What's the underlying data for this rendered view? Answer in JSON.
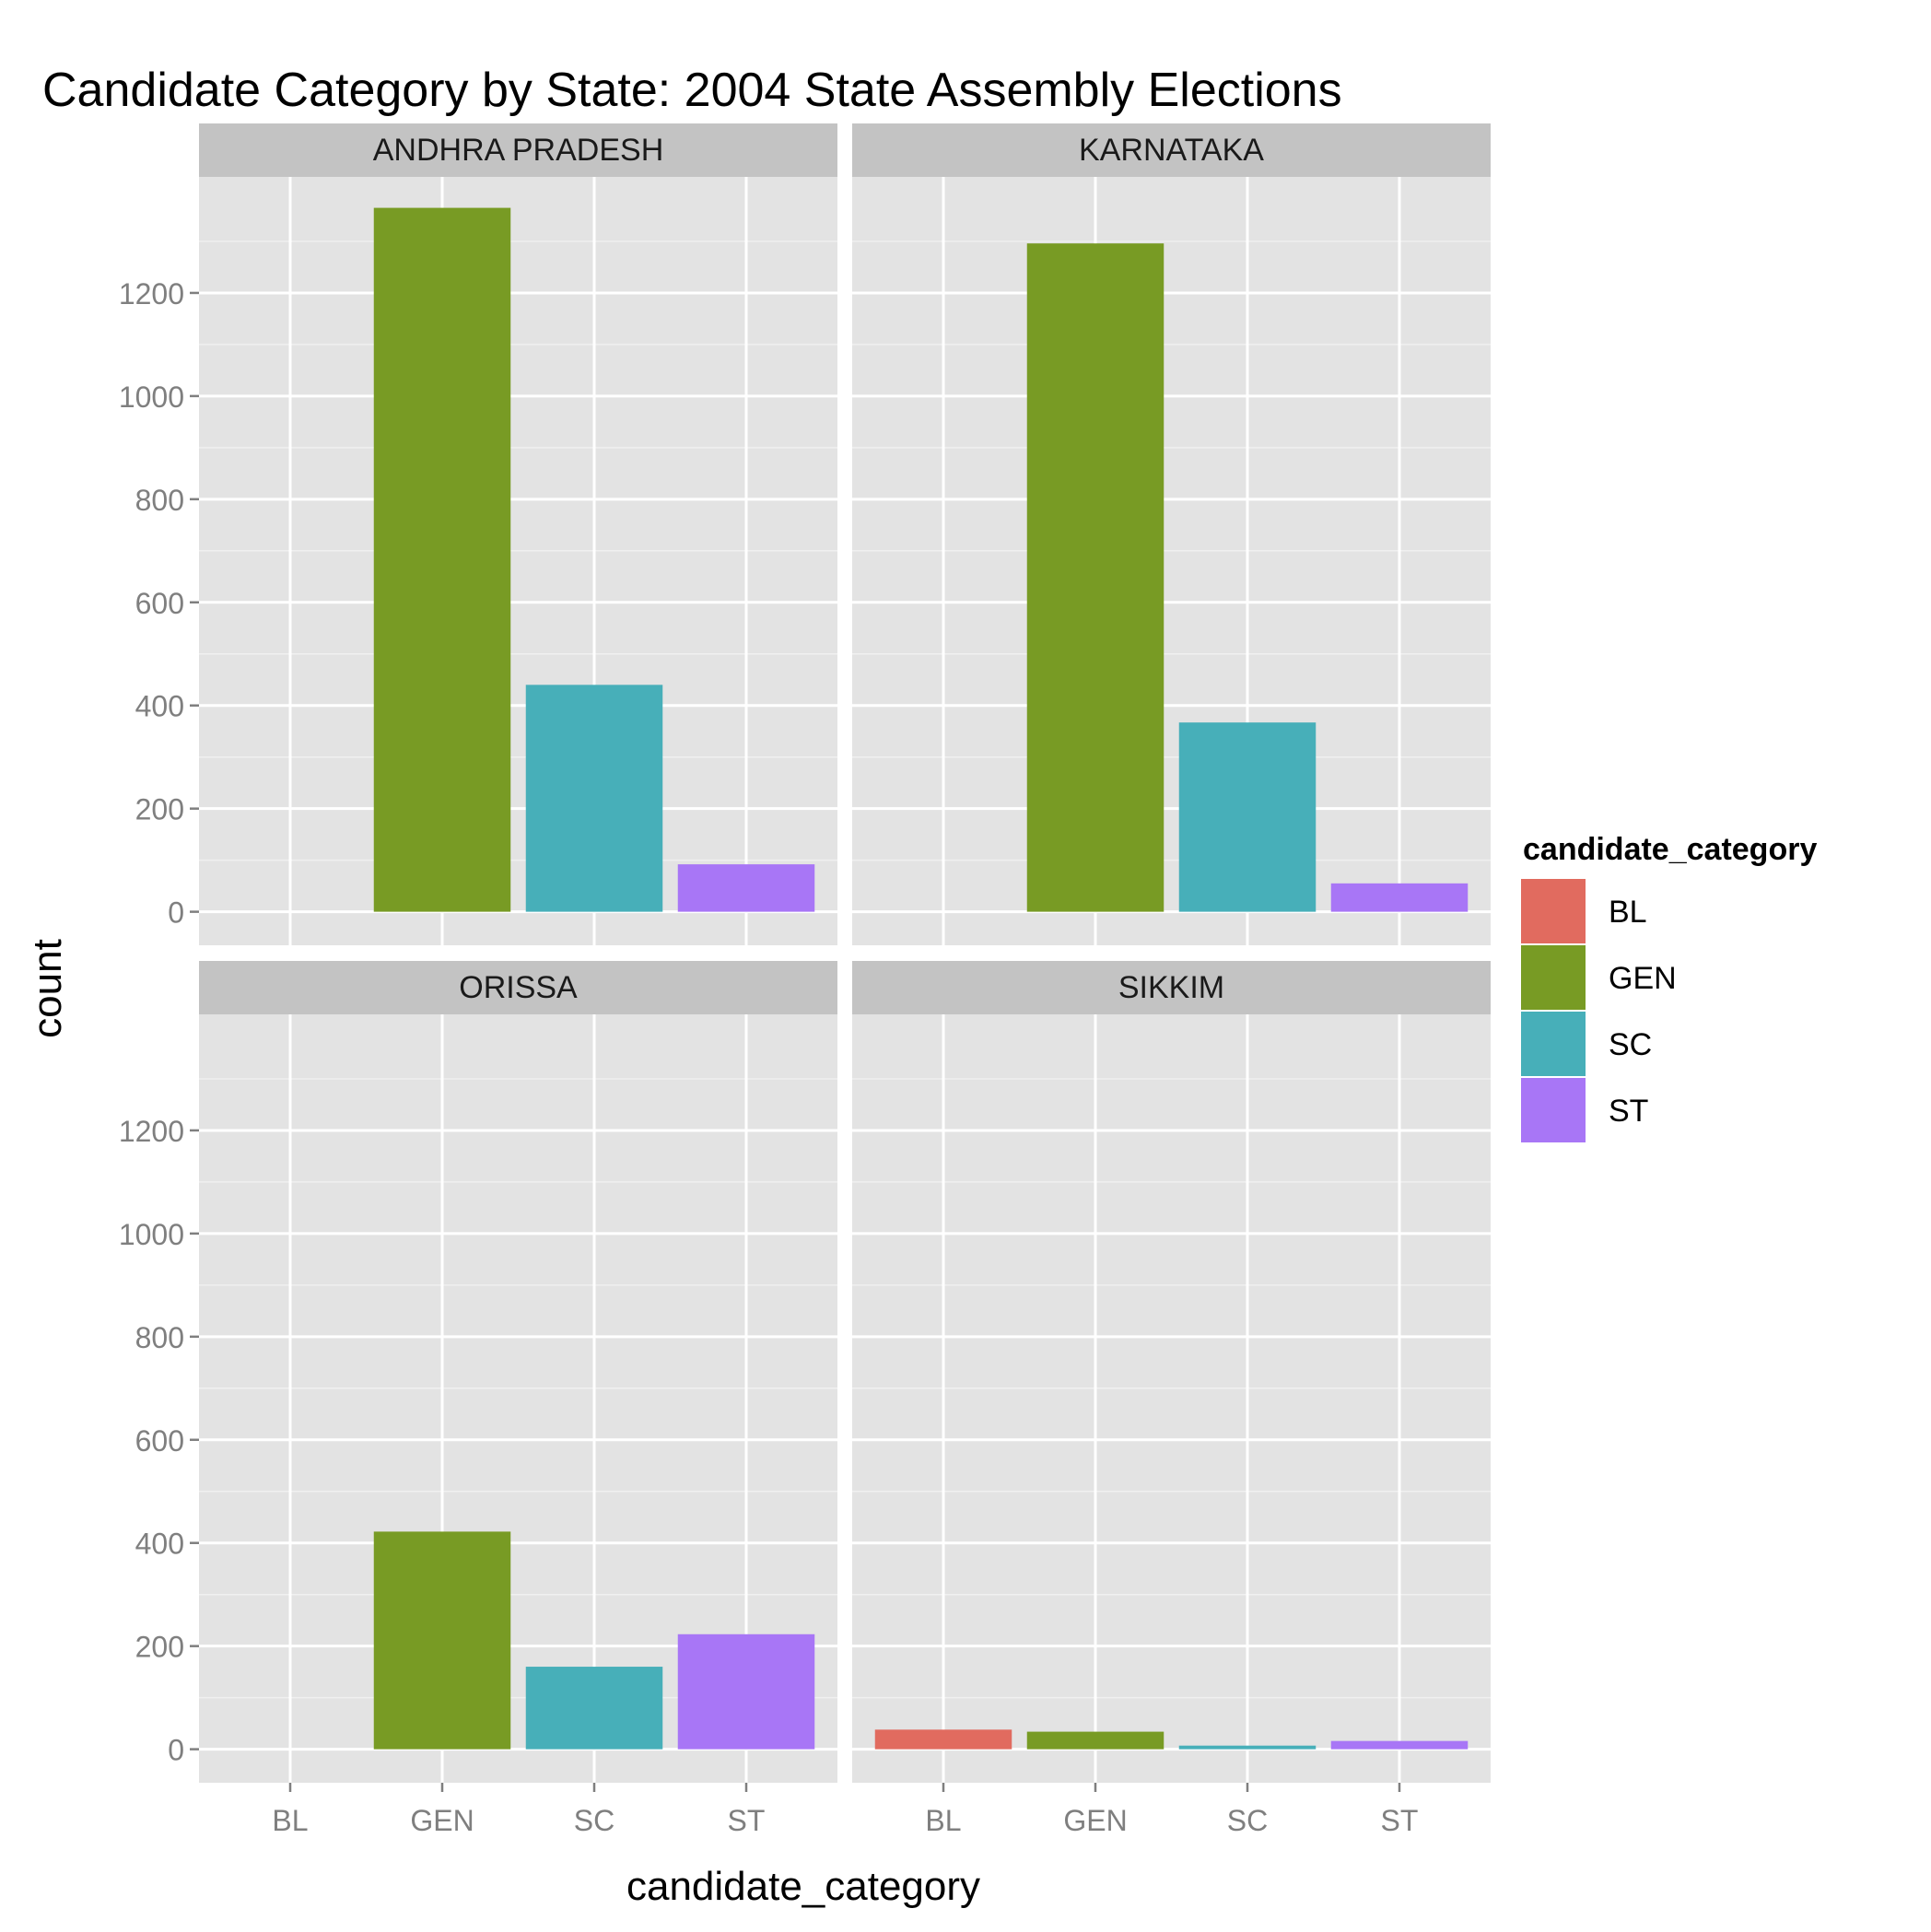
{
  "chart_data": {
    "type": "bar",
    "title": "Candidate Category by State: 2004 State Assembly Elections",
    "xlabel": "candidate_category",
    "ylabel": "count",
    "categories": [
      "BL",
      "GEN",
      "SC",
      "ST"
    ],
    "ylim": [
      -65,
      1425
    ],
    "y_ticks": [
      0,
      200,
      400,
      600,
      800,
      1000,
      1200
    ],
    "y_tick_labels": [
      "0",
      "200",
      "400",
      "600",
      "800",
      "1000",
      "1200"
    ],
    "grid": true,
    "legend": {
      "title": "candidate_category",
      "placement": "right",
      "items": [
        {
          "label": "BL",
          "color": "#E16B5F"
        },
        {
          "label": "GEN",
          "color": "#789B24"
        },
        {
          "label": "SC",
          "color": "#47AFB9"
        },
        {
          "label": "ST",
          "color": "#A876F6"
        }
      ]
    },
    "facets": [
      {
        "name": "ANDHRA PRADESH",
        "values": [
          0,
          1365,
          440,
          92
        ]
      },
      {
        "name": "KARNATAKA",
        "values": [
          0,
          1296,
          367,
          55
        ]
      },
      {
        "name": "ORISSA",
        "values": [
          0,
          422,
          160,
          223
        ]
      },
      {
        "name": "SIKKIM",
        "values": [
          38,
          34,
          7,
          16
        ]
      }
    ]
  }
}
